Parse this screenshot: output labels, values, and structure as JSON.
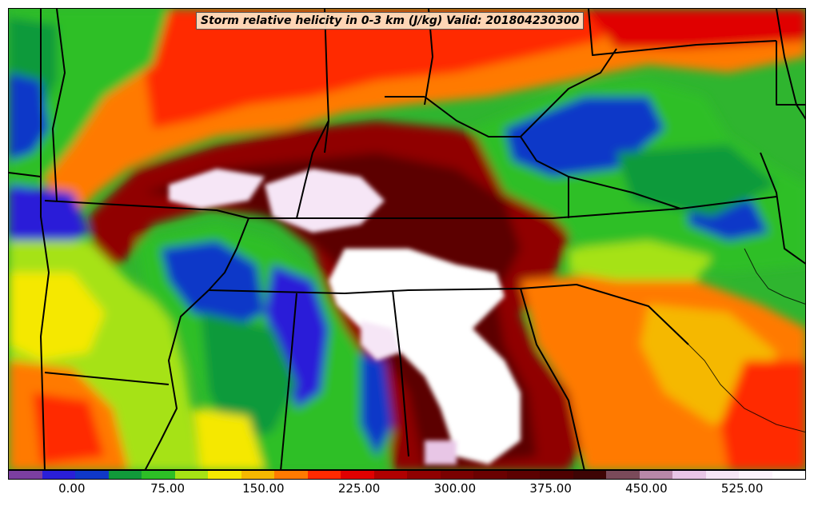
{
  "title": "Storm relative helicity in 0-3 km (J/kg) Valid: 201804230300",
  "colorbar": {
    "colors": [
      "#7b3fa0",
      "#2a1fd8",
      "#1038c8",
      "#119a3a",
      "#2dbf26",
      "#a6e215",
      "#f5e800",
      "#f5b800",
      "#ff7a00",
      "#ff2a00",
      "#e00000",
      "#b00000",
      "#900000",
      "#7a0000",
      "#6a0000",
      "#5c0000",
      "#4e0000",
      "#3e0404",
      "#7a4a5a",
      "#b888a8",
      "#e8c6e6",
      "#f6e6f6",
      "#fcf4fc",
      "#ffffff"
    ],
    "min": -50,
    "max": 575,
    "labels": [
      {
        "text": "0.00",
        "value": 0
      },
      {
        "text": "75.00",
        "value": 75
      },
      {
        "text": "150.00",
        "value": 150
      },
      {
        "text": "225.00",
        "value": 225
      },
      {
        "text": "300.00",
        "value": 300
      },
      {
        "text": "375.00",
        "value": 375
      },
      {
        "text": "450.00",
        "value": 450
      },
      {
        "text": "525.00",
        "value": 525
      }
    ]
  }
}
